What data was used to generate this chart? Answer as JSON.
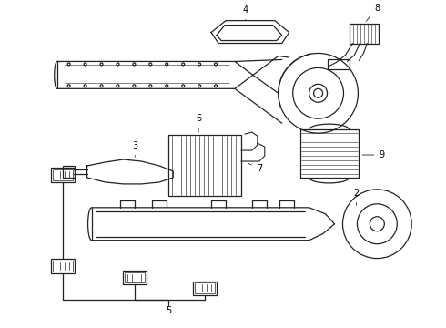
{
  "bg_color": "#ffffff",
  "line_color": "#222222",
  "label_color": "#000000",
  "lw": 0.9,
  "label_fs": 7
}
